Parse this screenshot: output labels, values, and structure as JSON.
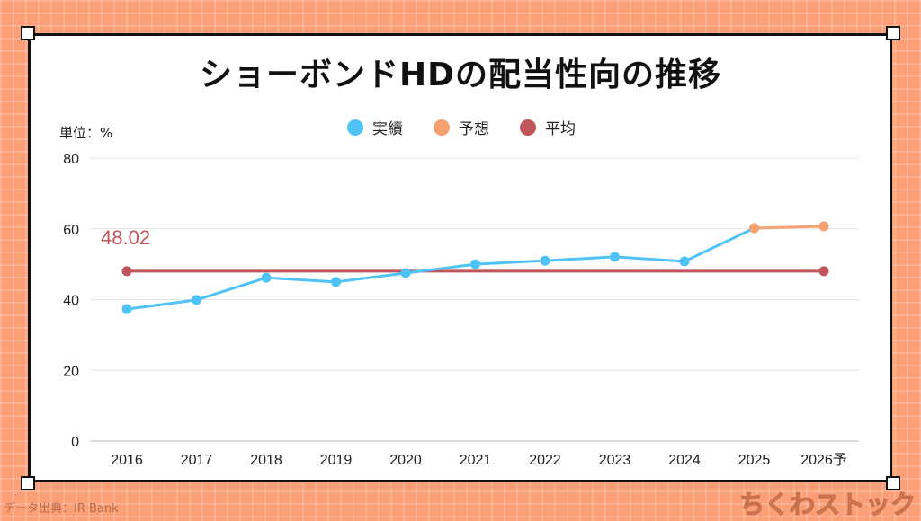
{
  "title": "ショーボンドHDの配当性向の推移",
  "unit_label": "単位：%",
  "source": "データ出典：IR Bank",
  "logo_text": "ちくわストック",
  "chart_data": {
    "type": "line",
    "title": "ショーボンドHDの配当性向の推移",
    "ylabel": "単位：%",
    "ylim": [
      0,
      80
    ],
    "yticks": [
      0,
      20,
      40,
      60,
      80
    ],
    "grid": true,
    "legend_position": "top",
    "categories": [
      "2016",
      "2017",
      "2018",
      "2019",
      "2020",
      "2021",
      "2022",
      "2023",
      "2024",
      "2025",
      "2026予"
    ],
    "series": [
      {
        "name": "実績",
        "color": "#4fc3f7",
        "values": [
          37.3,
          39.9,
          46.2,
          45.0,
          47.5,
          50.0,
          51.0,
          52.1,
          50.8,
          60.2,
          null
        ]
      },
      {
        "name": "予想",
        "color": "#f7a072",
        "values": [
          null,
          null,
          null,
          null,
          null,
          null,
          null,
          null,
          null,
          60.2,
          60.7
        ]
      },
      {
        "name": "平均",
        "color": "#c0555c",
        "values": [
          48.02,
          48.02,
          48.02,
          48.02,
          48.02,
          48.02,
          48.02,
          48.02,
          48.02,
          48.02,
          48.02
        ]
      }
    ],
    "annotation": "48.02"
  }
}
